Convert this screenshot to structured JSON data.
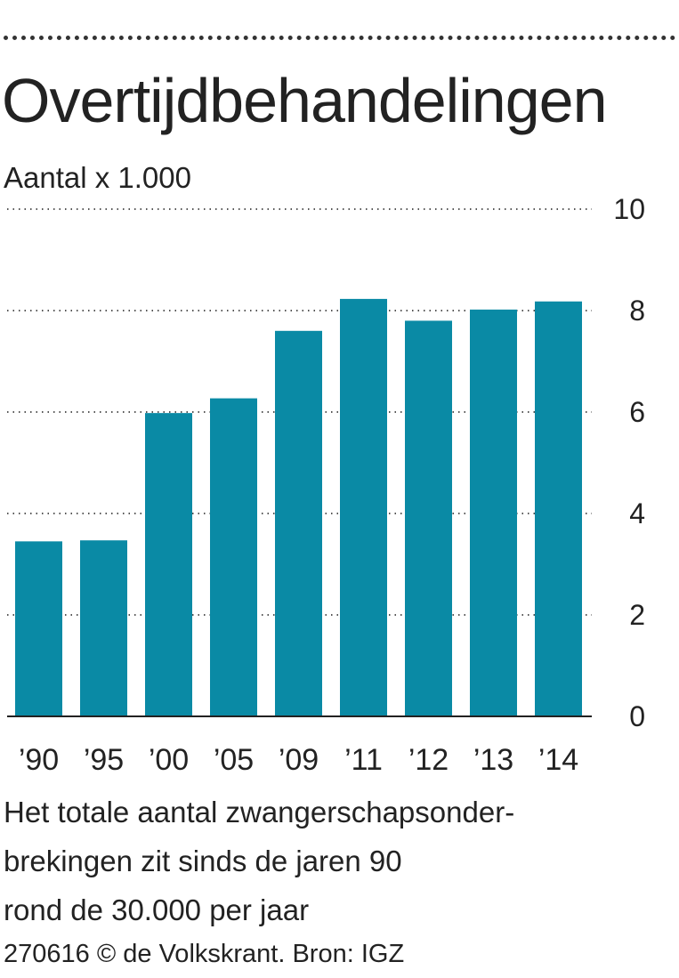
{
  "header": {
    "title": "Overtijdbehandelingen",
    "subtitle": "Aantal x 1.000"
  },
  "note": {
    "lines": [
      "Het totale aantal zwangerschapsonder-",
      "brekingen zit sinds de jaren 90",
      "rond de 30.000 per jaar"
    ]
  },
  "credit": "270616 © de Volkskrant. Bron: IGZ",
  "colors": {
    "bar": "#0a8aa5",
    "text": "#222222",
    "grid": "#555555"
  },
  "chart_data": {
    "type": "bar",
    "title": "Overtijdbehandelingen",
    "ylabel": "Aantal x 1.000",
    "xlabel": "",
    "categories": [
      "’90",
      "’95",
      "’00",
      "’05",
      "’09",
      "’11",
      "’12",
      "’13",
      "’14"
    ],
    "values": [
      3.45,
      3.47,
      5.98,
      6.27,
      7.6,
      8.23,
      7.8,
      8.02,
      8.18
    ],
    "ylim": [
      0,
      10
    ],
    "yticks": [
      0,
      2,
      4,
      6,
      8,
      10
    ],
    "grid": true,
    "y_axis_side": "right"
  }
}
